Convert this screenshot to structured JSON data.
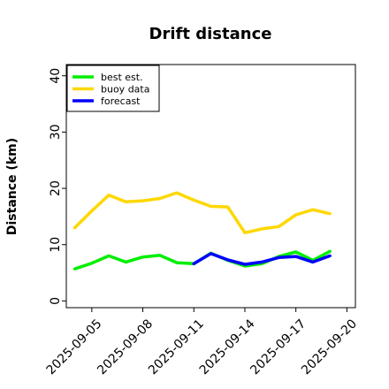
{
  "chart_data": {
    "type": "line",
    "title": "Drift distance",
    "xlabel": "",
    "ylabel": "Distance (km)",
    "ylim": [
      -1.2,
      42
    ],
    "yticks": [
      0,
      10,
      20,
      30,
      40
    ],
    "xticks": [
      "2025-09-05",
      "2025-09-08",
      "2025-09-11",
      "2025-09-14",
      "2025-09-17",
      "2025-09-20"
    ],
    "highlighted_xtick": "2025-09-11",
    "highlight_color": "#228b22",
    "legend_position": "upper left",
    "grid": false,
    "series": [
      {
        "name": "best est.",
        "color": "#00ee00",
        "x": [
          "2025-09-04",
          "2025-09-05",
          "2025-09-06",
          "2025-09-07",
          "2025-09-08",
          "2025-09-09",
          "2025-09-10",
          "2025-09-11",
          "2025-09-12",
          "2025-09-13",
          "2025-09-14",
          "2025-09-15",
          "2025-09-16",
          "2025-09-17",
          "2025-09-18",
          "2025-09-19"
        ],
        "y": [
          5.7,
          6.7,
          8.0,
          6.9,
          7.8,
          8.1,
          6.8,
          6.6,
          8.5,
          7.2,
          6.2,
          6.6,
          7.9,
          8.7,
          7.2,
          8.8
        ]
      },
      {
        "name": "buoy data",
        "color": "#ffd700",
        "x": [
          "2025-09-04",
          "2025-09-05",
          "2025-09-06",
          "2025-09-07",
          "2025-09-08",
          "2025-09-09",
          "2025-09-10",
          "2025-09-11",
          "2025-09-12",
          "2025-09-13",
          "2025-09-14",
          "2025-09-15",
          "2025-09-16",
          "2025-09-17",
          "2025-09-18",
          "2025-09-19"
        ],
        "y": [
          13.0,
          16.0,
          18.8,
          17.6,
          17.8,
          18.2,
          19.2,
          17.9,
          16.8,
          16.7,
          12.1,
          12.8,
          13.2,
          15.3,
          16.2,
          15.5
        ]
      },
      {
        "name": "forecast",
        "color": "#0000ff",
        "x": [
          "2025-09-11",
          "2025-09-12",
          "2025-09-13",
          "2025-09-14",
          "2025-09-15",
          "2025-09-16",
          "2025-09-17",
          "2025-09-18",
          "2025-09-19"
        ],
        "y": [
          6.6,
          8.4,
          7.3,
          6.5,
          6.9,
          7.7,
          7.9,
          6.9,
          8.0
        ]
      }
    ]
  }
}
